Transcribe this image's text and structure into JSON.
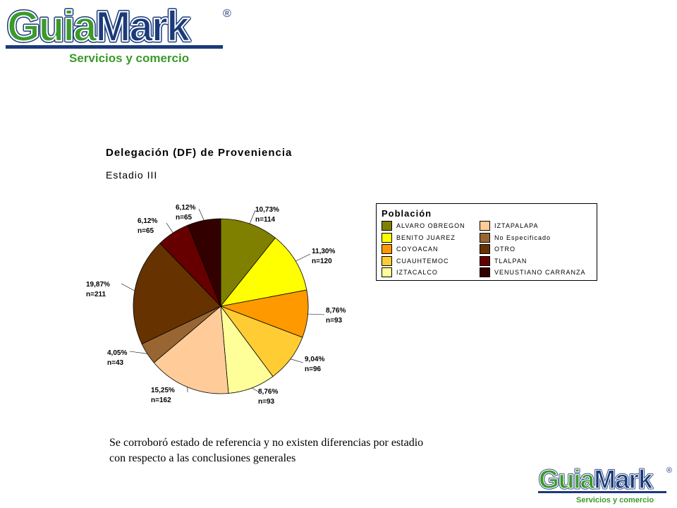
{
  "logo": {
    "brand_part1": "Guia",
    "brand_part2": "Mark",
    "registered": "®",
    "tagline": "Servicios y comercio",
    "colors": {
      "green": "#3a9a2a",
      "navy": "#1a3a7a"
    }
  },
  "chart_data": {
    "type": "pie",
    "title": "Delegación (DF) de Proveniencia",
    "subtitle": "Estadio III",
    "legend_title": "Población",
    "legend_placement": "right",
    "slices": [
      {
        "name": "ALVARO OBREGON",
        "percent": 10.73,
        "label_pct": "10,73%",
        "label_n": "n=114",
        "color": "#808000"
      },
      {
        "name": "BENITO JUAREZ",
        "percent": 11.3,
        "label_pct": "11,30%",
        "label_n": "n=120",
        "color": "#ffff00"
      },
      {
        "name": "COYOACAN",
        "percent": 8.76,
        "label_pct": "8,76%",
        "label_n": "n=93",
        "color": "#ff9900"
      },
      {
        "name": "CUAUHTEMOC",
        "percent": 9.04,
        "label_pct": "9,04%",
        "label_n": "n=96",
        "color": "#ffcc33"
      },
      {
        "name": "IZTACALCO",
        "percent": 8.76,
        "label_pct": "8,76%",
        "label_n": "n=93",
        "color": "#ffff99"
      },
      {
        "name": "IZTAPALAPA",
        "percent": 15.25,
        "label_pct": "15,25%",
        "label_n": "n=162",
        "color": "#ffcc99"
      },
      {
        "name": "No Especificado",
        "percent": 4.05,
        "label_pct": "4,05%",
        "label_n": "n=43",
        "color": "#996633"
      },
      {
        "name": "OTRO",
        "percent": 19.87,
        "label_pct": "19,87%",
        "label_n": "n=211",
        "color": "#663300"
      },
      {
        "name": "TLALPAN",
        "percent": 6.12,
        "label_pct": "6,12%",
        "label_n": "n=65",
        "color": "#660000"
      },
      {
        "name": "VENUSTIANO CARRANZA",
        "percent": 6.12,
        "label_pct": "6,12%",
        "label_n": "n=65",
        "color": "#330000"
      }
    ]
  },
  "conclusion": {
    "line1": "Se corroboró estado de referencia y no existen diferencias por estadio",
    "line2": "con respecto a las conclusiones generales"
  }
}
